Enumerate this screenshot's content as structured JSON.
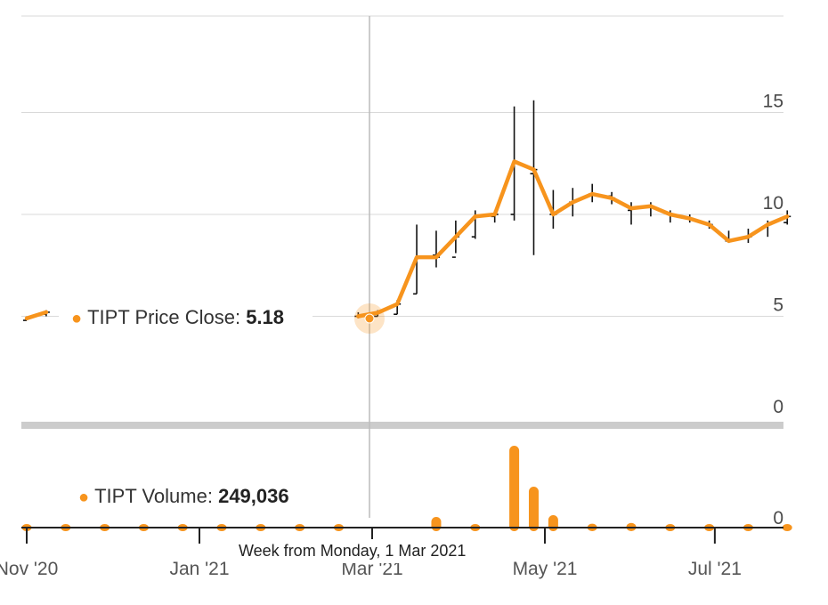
{
  "colors": {
    "accent": "#f7941d",
    "grid": "#d9d9d9",
    "crosshair": "#bbbbbb"
  },
  "tooltip": {
    "price_name": "TIPT Price Close: ",
    "price_value": "5.18",
    "volume_name": "TIPT Volume: ",
    "volume_value": "249,036",
    "date_label": "Week from Monday, 1 Mar 2021"
  },
  "chart_data": {
    "type": "line",
    "price_axis": {
      "ticks": [
        "0",
        "5",
        "10",
        "15"
      ],
      "ylim": [
        0,
        20
      ]
    },
    "volume_axis": {
      "ticks": [
        "0"
      ]
    },
    "x_ticks": [
      "Nov '20",
      "Jan '21",
      "Mar '21",
      "May '21",
      "Jul '21"
    ],
    "grid": true,
    "series": [
      {
        "name": "TIPT Price Close",
        "x": [
          "2020-10-26",
          "2020-11-02",
          "2021-02-22",
          "2021-03-01",
          "2021-03-08",
          "2021-03-15",
          "2021-03-22",
          "2021-03-29",
          "2021-04-05",
          "2021-04-12",
          "2021-04-19",
          "2021-04-26",
          "2021-05-03",
          "2021-05-10",
          "2021-05-17",
          "2021-05-24",
          "2021-05-31",
          "2021-06-07",
          "2021-06-14",
          "2021-06-21",
          "2021-06-28",
          "2021-07-05",
          "2021-07-12",
          "2021-07-19",
          "2021-07-26"
        ],
        "values": [
          4.9,
          5.2,
          5.0,
          5.18,
          5.6,
          7.9,
          7.9,
          8.9,
          9.9,
          10.0,
          12.6,
          12.2,
          10.0,
          10.6,
          11.0,
          10.8,
          10.3,
          10.4,
          10.0,
          9.8,
          9.5,
          8.7,
          8.9,
          9.5,
          9.9
        ],
        "high": [
          5.0,
          5.3,
          5.2,
          5.3,
          5.8,
          9.5,
          9.2,
          9.7,
          10.2,
          10.2,
          15.3,
          15.6,
          11.2,
          11.3,
          11.5,
          11.1,
          10.6,
          10.6,
          10.2,
          10.0,
          9.7,
          9.2,
          9.3,
          9.7,
          10.2
        ],
        "low": [
          4.8,
          5.0,
          4.9,
          5.0,
          5.1,
          6.1,
          7.4,
          8.1,
          8.8,
          9.6,
          9.7,
          8.0,
          9.3,
          9.9,
          10.6,
          10.5,
          9.5,
          9.9,
          9.6,
          9.6,
          9.3,
          8.6,
          8.6,
          8.9,
          9.5
        ],
        "open": [
          4.8,
          5.1,
          5.0,
          5.0,
          5.1,
          6.1,
          8.0,
          7.9,
          8.9,
          9.9,
          10.0,
          12.0,
          10.0,
          10.6,
          11.0,
          10.9,
          10.2,
          10.4,
          10.0,
          9.8,
          9.5,
          8.7,
          8.9,
          9.4,
          9.6
        ]
      },
      {
        "name": "TIPT Volume",
        "x": [
          "2020-10-26",
          "2020-11-09",
          "2020-11-23",
          "2020-12-07",
          "2020-12-21",
          "2021-01-04",
          "2021-01-18",
          "2021-02-01",
          "2021-02-15",
          "2021-03-22",
          "2021-04-05",
          "2021-04-19",
          "2021-04-26",
          "2021-05-03",
          "2021-05-17",
          "2021-05-31",
          "2021-06-14",
          "2021-06-28",
          "2021-07-12",
          "2021-07-26"
        ],
        "values": [
          45000,
          50000,
          30000,
          60000,
          60000,
          55000,
          60000,
          40000,
          30000,
          460000,
          120000,
          3540000,
          1770000,
          540000,
          170000,
          200000,
          150000,
          110000,
          80000,
          60000
        ]
      }
    ]
  }
}
